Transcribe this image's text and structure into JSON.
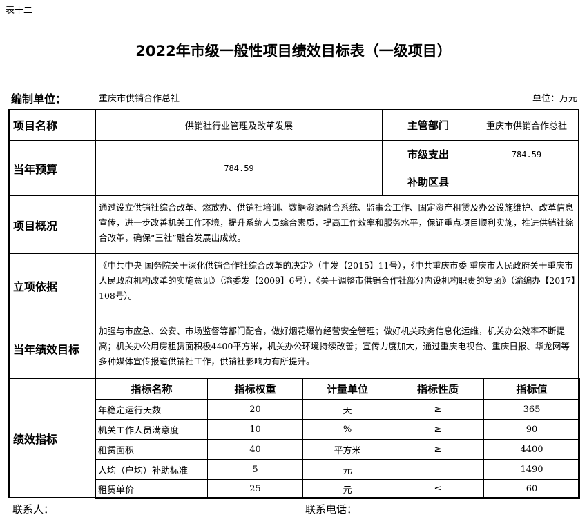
{
  "table_no": "表十二",
  "title": "2022年市级一般性项目绩效目标表（一级项目）",
  "unit_label": "编制单位：",
  "unit_name": "重庆市供销合作总社",
  "currency": "单位：万元",
  "rows": {
    "project_name_label": "项目名称",
    "project_name": "供销社行业管理及改革发展",
    "dept_label": "主管部门",
    "dept": "重庆市供销合作总社",
    "budget_label": "当年预算",
    "budget": "784.59",
    "city_label": "市级支出",
    "city": "784.59",
    "district_label": "补助区县",
    "district": "",
    "overview_label": "项目概况",
    "overview": "通过设立供销社综合改革、燃放办、供销社培训、数据资源融合系统、监事会工作、固定资产租赁及办公设施维护、改革信息宣传，进一步改善机关工作环境，提升系统人员综合素质，提高工作效率和服务水平，保证重点项目顺利实施，推进供销社综合改革，确保“三社”融合发展出成效。",
    "basis_label": "立项依据",
    "basis": "《中共中央 国务院关于深化供销合作社综合改革的决定》（中发【2015】11号），《中共重庆市委 重庆市人民政府关于重庆市人民政府机构改革的实施意见》（渝委发【2009】6号），《关于调整市供销合作社部分内设机构职责的复函》（渝编办【2017】108号）。",
    "goal_label": "当年绩效目标",
    "goal": "加强与市应急、公安、市场监督等部门配合，做好烟花爆竹经营安全管理；做好机关政务信息化运维，机关办公效率不断提高；机关办公用房租赁面积极4400平方米，机关办公环境持续改善；宣传力度加大，通过重庆电视台、重庆日报、华龙网等多种媒体宣传报道供销社工作，供销社影响力有所提升。",
    "indicator_label": "绩效指标"
  },
  "indicators": {
    "headers": [
      "指标名称",
      "指标权重",
      "计量单位",
      "指标性质",
      "指标值"
    ],
    "rows": [
      [
        "年稳定运行天数",
        "20",
        "天",
        "≥",
        "365"
      ],
      [
        "机关工作人员满意度",
        "10",
        "%",
        "≥",
        "90"
      ],
      [
        "租赁面积",
        "40",
        "平方米",
        "≥",
        "4400"
      ],
      [
        "人均（户均）补助标准",
        "5",
        "元",
        "＝",
        "1490"
      ],
      [
        "租赁单价",
        "25",
        "元",
        "≤",
        "60"
      ]
    ]
  },
  "footer": {
    "contact": "联系人：",
    "phone": "联系电话："
  }
}
